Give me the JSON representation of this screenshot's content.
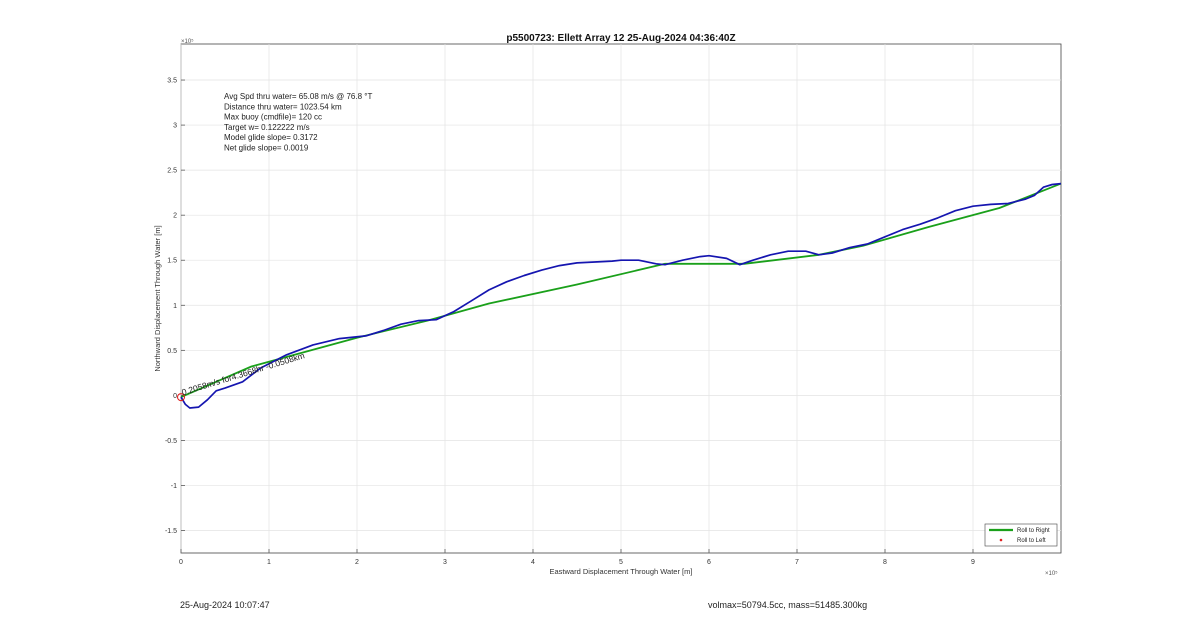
{
  "chart_data": {
    "type": "line",
    "title": "p5500723: Ellett Array 12 25-Aug-2024 04:36:40Z",
    "xlabel": "Eastward Displacement Through Water [m]",
    "ylabel": "Northward Displacement Through Water [m]",
    "x_exponent_label": "×10⁵",
    "y_exponent_label": "×10⁵",
    "xlim": [
      0,
      10
    ],
    "ylim": [
      -1.75,
      3.9
    ],
    "x_ticks": [
      0,
      1,
      2,
      3,
      4,
      5,
      6,
      7,
      8,
      9
    ],
    "x_tick_labels": [
      "0",
      "1",
      "2",
      "3",
      "4",
      "5",
      "6",
      "7",
      "8",
      "9"
    ],
    "y_ticks": [
      -1.5,
      -1,
      -0.5,
      0,
      0.5,
      1,
      1.5,
      2,
      2.5,
      3,
      3.5
    ],
    "y_tick_labels": [
      "-1.5",
      "-1",
      "-0.5",
      "0",
      "0.5",
      "1",
      "1.5",
      "2",
      "2.5",
      "3",
      "3.5"
    ],
    "grid": true,
    "legend_position": "bottom-right",
    "legend": [
      {
        "label": "Roll to Right",
        "color": "#1aa01a",
        "style": "line"
      },
      {
        "label": "Roll to Left",
        "color": "#e02020",
        "style": "dot"
      }
    ],
    "annotations": [
      "Avg Spd thru water= 65.08 m/s @  76.8 °T",
      "Distance thru water= 1023.54 km",
      "Max buoy (cmdfile)= 120 cc",
      "Target w= 0.122222 m/s",
      "Model glide slope= 0.3172",
      "Net glide slope= 0.0019"
    ],
    "path_label": "0.2058m/s for4.3668hr -0.0508km",
    "series": [
      {
        "color": "#1aa01a",
        "x": [
          0,
          0.8,
          2.0,
          2.8,
          3.5,
          4.5,
          5.5,
          6.0,
          6.4,
          7.25,
          7.75,
          8.5,
          9.3,
          10.0
        ],
        "y": [
          -0.02,
          0.32,
          0.64,
          0.83,
          1.02,
          1.23,
          1.46,
          1.46,
          1.46,
          1.56,
          1.66,
          1.87,
          2.08,
          2.35
        ]
      },
      {
        "color": "#1515b0",
        "x": [
          0,
          0.05,
          0.1,
          0.2,
          0.3,
          0.4,
          0.5,
          0.7,
          0.9,
          1.2,
          1.5,
          1.8,
          2.1,
          2.3,
          2.5,
          2.7,
          2.9,
          3.1,
          3.3,
          3.5,
          3.7,
          3.9,
          4.1,
          4.3,
          4.5,
          4.7,
          4.9,
          5.0,
          5.2,
          5.4,
          5.5,
          5.7,
          5.9,
          6.0,
          6.2,
          6.35,
          6.5,
          6.7,
          6.9,
          7.1,
          7.25,
          7.4,
          7.6,
          7.8,
          8.0,
          8.2,
          8.4,
          8.6,
          8.8,
          9.0,
          9.2,
          9.4,
          9.6,
          9.7,
          9.8,
          9.9,
          10.0
        ],
        "y": [
          -0.02,
          -0.1,
          -0.14,
          -0.13,
          -0.05,
          0.05,
          0.08,
          0.15,
          0.3,
          0.45,
          0.56,
          0.63,
          0.66,
          0.72,
          0.79,
          0.83,
          0.84,
          0.93,
          1.05,
          1.17,
          1.26,
          1.33,
          1.39,
          1.44,
          1.47,
          1.48,
          1.49,
          1.5,
          1.5,
          1.46,
          1.45,
          1.5,
          1.54,
          1.55,
          1.52,
          1.45,
          1.5,
          1.56,
          1.6,
          1.6,
          1.56,
          1.58,
          1.64,
          1.68,
          1.76,
          1.84,
          1.9,
          1.97,
          2.05,
          2.1,
          2.12,
          2.13,
          2.18,
          2.22,
          2.31,
          2.34,
          2.35
        ]
      }
    ]
  },
  "footer": {
    "timestamp": "25-Aug-2024 10:07:47",
    "mass_info": "volmax=50794.5cc, mass=51485.300kg"
  }
}
